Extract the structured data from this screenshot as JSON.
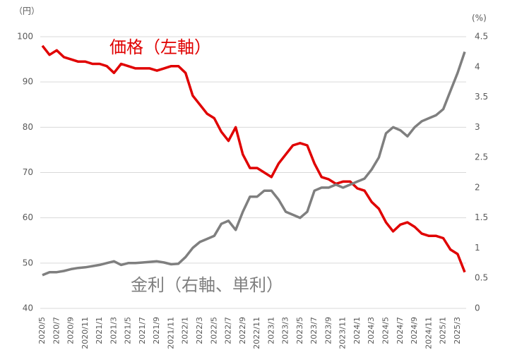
{
  "chart_data": {
    "type": "line",
    "y_unit": "（円）",
    "y2_unit": "(%)",
    "annotations": [
      {
        "text": "価格（左軸）",
        "color": "#e00000"
      },
      {
        "text": "金利（右軸、単利）",
        "color": "#7f7f7f"
      }
    ],
    "categories": [
      "2020/5",
      null,
      "2020/7",
      null,
      "2020/9",
      null,
      "2020/11",
      null,
      "2021/1",
      null,
      "2021/3",
      null,
      "2021/5",
      null,
      "2021/7",
      null,
      "2021/9",
      null,
      "2021/11",
      null,
      "2022/1",
      null,
      "2022/3",
      null,
      "2022/5",
      null,
      "2022/7",
      null,
      "2022/9",
      null,
      "2022/11",
      null,
      "2023/1",
      null,
      "2023/3",
      null,
      "2023/5",
      null,
      "2023/7",
      null,
      "2023/9",
      null,
      "2023/11",
      null,
      "2024/1",
      null,
      "2024/3",
      null,
      "2024/5",
      null,
      "2024/7",
      null,
      "2024/9",
      null,
      "2024/11",
      null,
      "2025/1",
      null,
      "2025/3",
      null
    ],
    "series": [
      {
        "name": "価格",
        "color": "#e00000",
        "values": [
          98,
          96,
          97,
          95.5,
          95,
          94.5,
          94.5,
          94,
          94,
          93.5,
          92,
          94,
          93.5,
          93,
          93,
          93,
          92.5,
          93,
          93.5,
          93.5,
          92,
          87,
          85,
          83,
          82,
          79,
          77,
          80,
          74,
          71,
          71,
          70,
          69,
          72,
          74,
          76,
          76.5,
          76,
          72,
          69,
          68.5,
          67.5,
          68,
          68,
          66.5,
          66,
          63.5,
          62,
          59,
          57,
          58.5,
          59,
          58,
          56.5,
          56,
          56,
          55.5,
          53,
          52,
          48
        ]
      },
      {
        "name": "金利",
        "color": "#7f7f7f",
        "axis": "y2",
        "values": [
          0.55,
          0.6,
          0.6,
          0.62,
          0.65,
          0.67,
          0.68,
          0.7,
          0.72,
          0.75,
          0.78,
          0.72,
          0.75,
          0.75,
          0.76,
          0.77,
          0.78,
          0.76,
          0.73,
          0.74,
          0.85,
          1.0,
          1.1,
          1.15,
          1.2,
          1.4,
          1.45,
          1.3,
          1.6,
          1.85,
          1.85,
          1.95,
          1.95,
          1.8,
          1.6,
          1.55,
          1.5,
          1.6,
          1.95,
          2.0,
          2.0,
          2.05,
          2.0,
          2.05,
          2.1,
          2.15,
          2.3,
          2.5,
          2.9,
          3.0,
          2.95,
          2.85,
          3.0,
          3.1,
          3.15,
          3.2,
          3.3,
          3.6,
          3.9,
          4.25
        ]
      }
    ],
    "ylim": [
      40,
      100
    ],
    "yticks": [
      40,
      50,
      60,
      70,
      80,
      90,
      100
    ],
    "y2lim": [
      0,
      4.5
    ],
    "y2ticks": [
      0,
      0.5,
      1,
      1.5,
      2,
      2.5,
      3,
      3.5,
      4,
      4.5
    ],
    "grid": true
  }
}
